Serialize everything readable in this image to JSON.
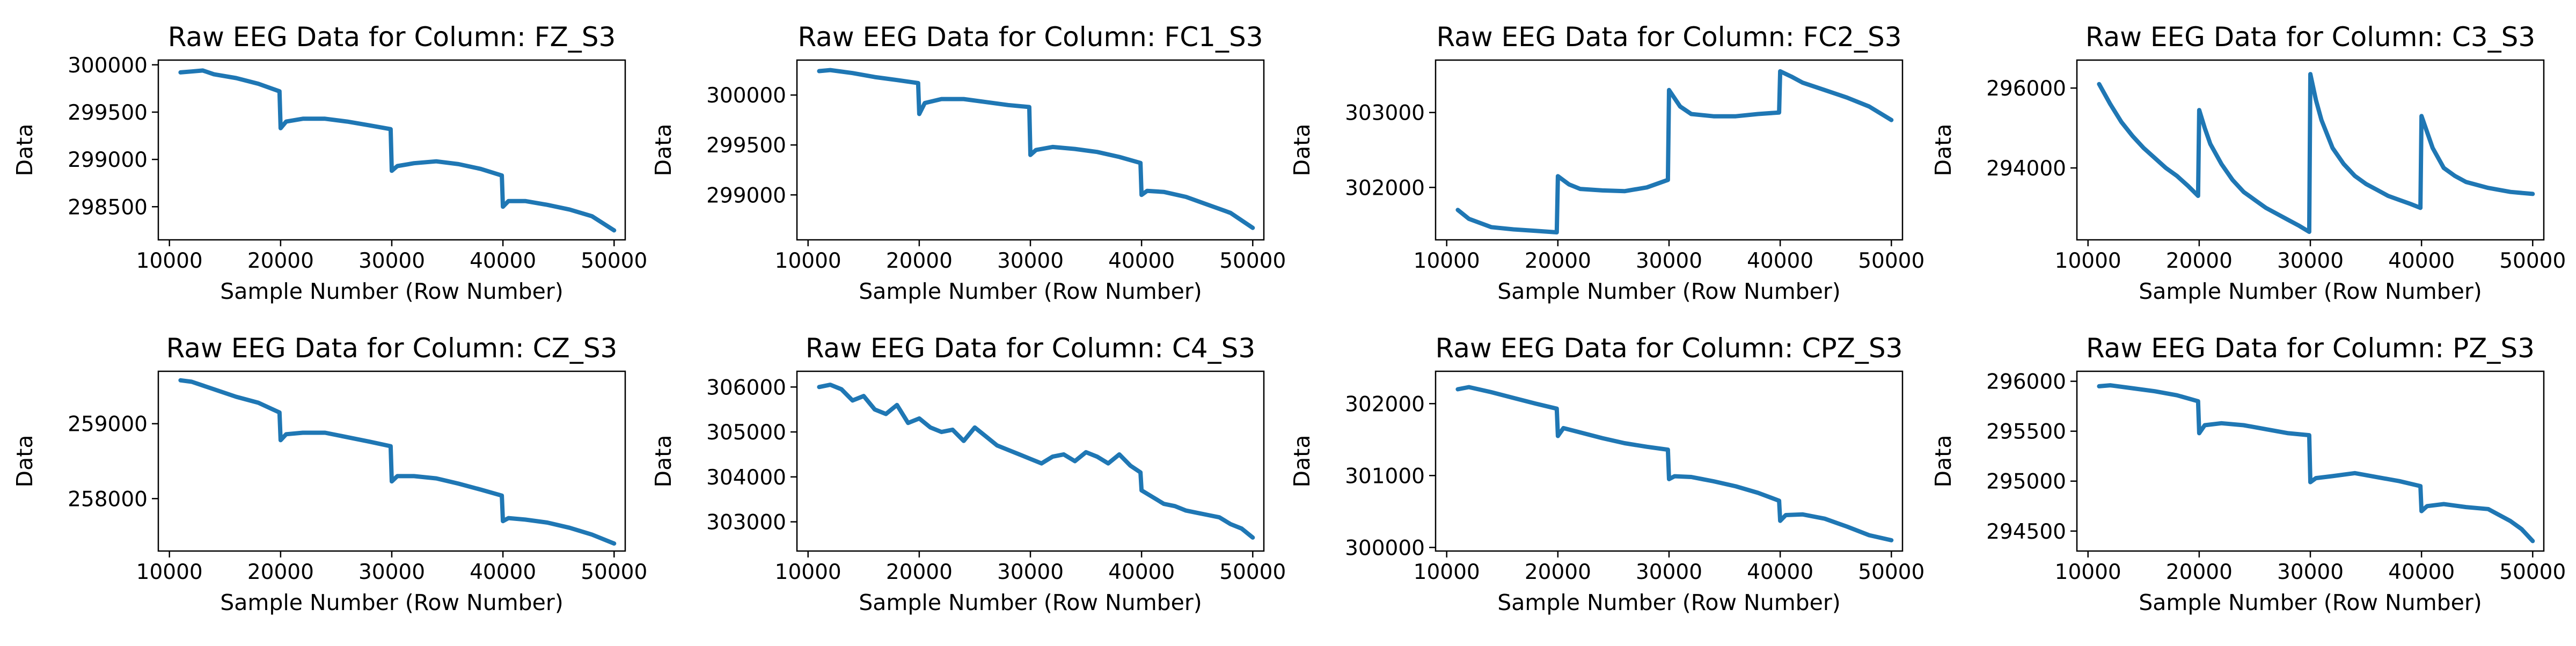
{
  "figure": {
    "line_color": "#1f77b4",
    "frame_color": "#000000"
  },
  "chart_data": [
    {
      "type": "line",
      "title": "Raw EEG Data for Column: FZ_S3",
      "xlabel": "Sample Number (Row Number)",
      "ylabel": "Data",
      "xlim": [
        9000,
        51000
      ],
      "xticks": [
        10000,
        20000,
        30000,
        40000,
        50000
      ],
      "ylim": [
        298150,
        300050
      ],
      "yticks": [
        298500,
        299000,
        299500,
        300000
      ],
      "grid": false,
      "x": [
        11000,
        12000,
        13000,
        14000,
        16000,
        18000,
        19900,
        20000,
        20500,
        22000,
        24000,
        26000,
        28000,
        29900,
        30000,
        30500,
        32000,
        34000,
        36000,
        38000,
        39900,
        40000,
        40500,
        42000,
        44000,
        46000,
        48000,
        50000
      ],
      "y": [
        299920,
        299930,
        299940,
        299900,
        299860,
        299800,
        299720,
        299330,
        299400,
        299430,
        299430,
        299400,
        299360,
        299320,
        298880,
        298930,
        298960,
        298980,
        298950,
        298900,
        298830,
        298500,
        298560,
        298560,
        298520,
        298470,
        298400,
        298250
      ]
    },
    {
      "type": "line",
      "title": "Raw EEG Data for Column: FC1_S3",
      "xlabel": "Sample Number (Row Number)",
      "ylabel": "Data",
      "xlim": [
        9000,
        51000
      ],
      "xticks": [
        10000,
        20000,
        30000,
        40000,
        50000
      ],
      "ylim": [
        298550,
        300350
      ],
      "yticks": [
        299000,
        299500,
        300000
      ],
      "grid": false,
      "x": [
        11000,
        12000,
        14000,
        16000,
        18000,
        19900,
        20000,
        20500,
        22000,
        24000,
        26000,
        28000,
        29900,
        30000,
        30500,
        32000,
        34000,
        36000,
        38000,
        39900,
        40000,
        40500,
        42000,
        44000,
        46000,
        48000,
        50000
      ],
      "y": [
        300240,
        300250,
        300220,
        300180,
        300150,
        300120,
        299810,
        299920,
        299960,
        299960,
        299930,
        299900,
        299880,
        299400,
        299450,
        299480,
        299460,
        299430,
        299380,
        299320,
        299000,
        299040,
        299030,
        298980,
        298900,
        298820,
        298670
      ]
    },
    {
      "type": "line",
      "title": "Raw EEG Data for Column: FC2_S3",
      "xlabel": "Sample Number (Row Number)",
      "ylabel": "Data",
      "xlim": [
        9000,
        51000
      ],
      "xticks": [
        10000,
        20000,
        30000,
        40000,
        50000
      ],
      "ylim": [
        301300,
        303700
      ],
      "yticks": [
        302000,
        303000
      ],
      "grid": false,
      "x": [
        11000,
        12000,
        14000,
        16000,
        18000,
        19900,
        20000,
        21000,
        22000,
        24000,
        26000,
        28000,
        29900,
        30000,
        31000,
        32000,
        34000,
        36000,
        38000,
        39900,
        40000,
        41000,
        42000,
        44000,
        46000,
        48000,
        50000
      ],
      "y": [
        301700,
        301580,
        301470,
        301440,
        301420,
        301400,
        302150,
        302040,
        301980,
        301960,
        301950,
        302000,
        302100,
        303300,
        303080,
        302980,
        302950,
        302950,
        302980,
        303000,
        303550,
        303480,
        303400,
        303300,
        303200,
        303080,
        302900
      ]
    },
    {
      "type": "line",
      "title": "Raw EEG Data for Column: C3_S3",
      "xlabel": "Sample Number (Row Number)",
      "ylabel": "Data",
      "xlim": [
        9000,
        51000
      ],
      "xticks": [
        10000,
        20000,
        30000,
        40000,
        50000
      ],
      "ylim": [
        292200,
        296700
      ],
      "yticks": [
        294000,
        296000
      ],
      "grid": false,
      "x": [
        11000,
        12000,
        13000,
        14000,
        15000,
        16000,
        17000,
        18000,
        19000,
        19900,
        20000,
        20500,
        21000,
        22000,
        23000,
        24000,
        25000,
        26000,
        27000,
        28000,
        29000,
        29900,
        30000,
        30500,
        31000,
        32000,
        33000,
        34000,
        35000,
        36000,
        37000,
        38000,
        39000,
        39900,
        40000,
        40500,
        41000,
        42000,
        43000,
        44000,
        46000,
        48000,
        50000
      ],
      "y": [
        296100,
        295600,
        295150,
        294800,
        294500,
        294250,
        294000,
        293800,
        293550,
        293300,
        295450,
        295000,
        294600,
        294100,
        293700,
        293400,
        293200,
        293000,
        292850,
        292700,
        292550,
        292400,
        296350,
        295700,
        295200,
        294500,
        294100,
        293800,
        293600,
        293450,
        293300,
        293200,
        293100,
        293000,
        295300,
        294900,
        294500,
        294000,
        293800,
        293650,
        293500,
        293400,
        293350
      ]
    },
    {
      "type": "line",
      "title": "Raw EEG Data for Column: CZ_S3",
      "xlabel": "Sample Number (Row Number)",
      "ylabel": "Data",
      "xlim": [
        9000,
        51000
      ],
      "xticks": [
        10000,
        20000,
        30000,
        40000,
        50000
      ],
      "ylim": [
        257300,
        259700
      ],
      "yticks": [
        258000,
        259000
      ],
      "grid": false,
      "x": [
        11000,
        12000,
        14000,
        16000,
        18000,
        19900,
        20000,
        20500,
        22000,
        24000,
        26000,
        28000,
        29900,
        30000,
        30500,
        32000,
        34000,
        36000,
        38000,
        39900,
        40000,
        40500,
        42000,
        44000,
        46000,
        48000,
        50000
      ],
      "y": [
        259580,
        259560,
        259460,
        259360,
        259280,
        259150,
        258780,
        258860,
        258880,
        258880,
        258820,
        258760,
        258700,
        258230,
        258300,
        258300,
        258270,
        258200,
        258120,
        258040,
        257700,
        257740,
        257720,
        257680,
        257610,
        257520,
        257400
      ]
    },
    {
      "type": "line",
      "title": "Raw EEG Data for Column: C4_S3",
      "xlabel": "Sample Number (Row Number)",
      "ylabel": "Data",
      "xlim": [
        9000,
        51000
      ],
      "xticks": [
        10000,
        20000,
        30000,
        40000,
        50000
      ],
      "ylim": [
        302350,
        306350
      ],
      "yticks": [
        303000,
        304000,
        305000,
        306000
      ],
      "grid": false,
      "x": [
        11000,
        12000,
        13000,
        14000,
        15000,
        16000,
        17000,
        18000,
        19000,
        20000,
        21000,
        22000,
        23000,
        24000,
        25000,
        26000,
        27000,
        28000,
        29000,
        30000,
        31000,
        32000,
        33000,
        34000,
        35000,
        36000,
        37000,
        38000,
        39000,
        39900,
        40000,
        41000,
        42000,
        43000,
        44000,
        45000,
        46000,
        47000,
        48000,
        49000,
        50000
      ],
      "y": [
        306000,
        306050,
        305950,
        305700,
        305800,
        305500,
        305400,
        305600,
        305200,
        305300,
        305100,
        305000,
        305050,
        304800,
        305100,
        304900,
        304700,
        304600,
        304500,
        304400,
        304300,
        304450,
        304500,
        304350,
        304550,
        304450,
        304300,
        304500,
        304250,
        304100,
        303700,
        303550,
        303400,
        303350,
        303250,
        303200,
        303150,
        303100,
        302950,
        302850,
        302650
      ]
    },
    {
      "type": "line",
      "title": "Raw EEG Data for Column: CPZ_S3",
      "xlabel": "Sample Number (Row Number)",
      "ylabel": "Data",
      "xlim": [
        9000,
        51000
      ],
      "xticks": [
        10000,
        20000,
        30000,
        40000,
        50000
      ],
      "ylim": [
        299950,
        302450
      ],
      "yticks": [
        300000,
        301000,
        302000
      ],
      "grid": false,
      "x": [
        11000,
        12000,
        14000,
        16000,
        18000,
        19900,
        20000,
        20500,
        22000,
        24000,
        26000,
        28000,
        29900,
        30000,
        30500,
        32000,
        34000,
        36000,
        38000,
        39900,
        40000,
        40500,
        42000,
        44000,
        46000,
        48000,
        50000
      ],
      "y": [
        302200,
        302230,
        302160,
        302080,
        302000,
        301930,
        301550,
        301660,
        301600,
        301520,
        301450,
        301400,
        301360,
        300950,
        300990,
        300980,
        300920,
        300850,
        300760,
        300650,
        300370,
        300450,
        300460,
        300400,
        300290,
        300170,
        300100
      ]
    },
    {
      "type": "line",
      "title": "Raw EEG Data for Column: PZ_S3",
      "xlabel": "Sample Number (Row Number)",
      "ylabel": "Data",
      "xlim": [
        9000,
        51000
      ],
      "xticks": [
        10000,
        20000,
        30000,
        40000,
        50000
      ],
      "ylim": [
        294300,
        296100
      ],
      "yticks": [
        294500,
        295000,
        295500,
        296000
      ],
      "grid": false,
      "x": [
        11000,
        12000,
        14000,
        16000,
        18000,
        19900,
        20000,
        20500,
        22000,
        24000,
        26000,
        28000,
        29900,
        30000,
        30500,
        32000,
        34000,
        36000,
        38000,
        39900,
        40000,
        40500,
        42000,
        44000,
        46000,
        48000,
        49000,
        50000
      ],
      "y": [
        295950,
        295960,
        295930,
        295900,
        295860,
        295800,
        295480,
        295560,
        295580,
        295560,
        295520,
        295480,
        295460,
        294990,
        295030,
        295050,
        295080,
        295040,
        295000,
        294950,
        294700,
        294750,
        294770,
        294740,
        294720,
        294600,
        294520,
        294400
      ]
    }
  ]
}
